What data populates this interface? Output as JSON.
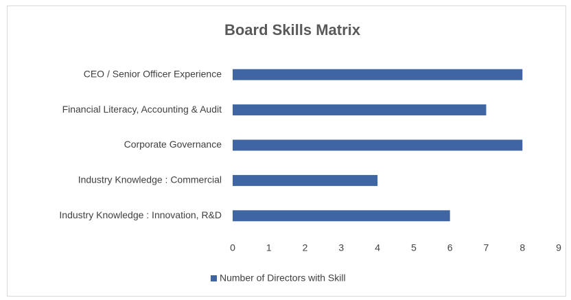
{
  "chart_data": {
    "type": "bar",
    "orientation": "horizontal",
    "title": "Board Skills Matrix",
    "categories": [
      "CEO / Senior Officer Experience",
      "Financial Literacy, Accounting & Audit",
      "Corporate Governance",
      "Industry Knowledge : Commercial",
      "Industry Knowledge : Innovation, R&D"
    ],
    "series": [
      {
        "name": "Number of Directors with Skill",
        "color": "#3f66a3",
        "values": [
          8,
          7,
          8,
          4,
          6
        ]
      }
    ],
    "xlim": [
      0,
      9
    ],
    "xticks": [
      0,
      1,
      2,
      3,
      4,
      5,
      6,
      7,
      8,
      9
    ],
    "grid": false,
    "legend": "bottom"
  }
}
